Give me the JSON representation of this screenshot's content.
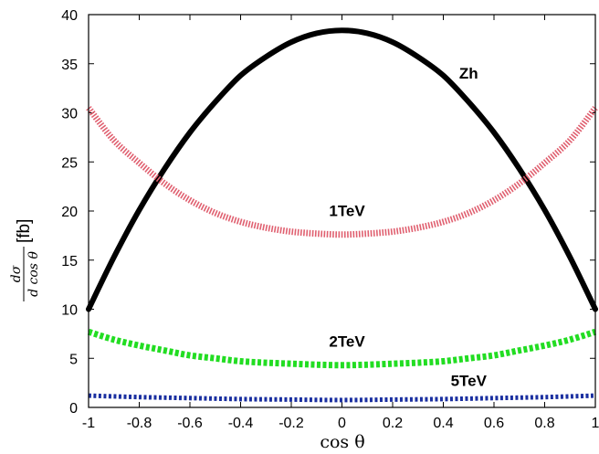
{
  "chart_data": {
    "type": "line",
    "xlabel": "cos θ",
    "ylabel": {
      "numerator": "dσ",
      "denominator": "d cos θ",
      "unit": "[fb]"
    },
    "xlim": [
      -1,
      1
    ],
    "ylim": [
      0,
      40
    ],
    "xticks": [
      "-1",
      "-0.8",
      "-0.6",
      "-0.4",
      "-0.2",
      "0",
      "0.2",
      "0.4",
      "0.6",
      "0.8",
      "1"
    ],
    "xtick_values": [
      -1,
      -0.8,
      -0.6,
      -0.4,
      -0.2,
      0,
      0.2,
      0.4,
      0.6,
      0.8,
      1
    ],
    "yticks": [
      "0",
      "5",
      "10",
      "15",
      "20",
      "25",
      "30",
      "35",
      "40"
    ],
    "ytick_values": [
      0,
      5,
      10,
      15,
      20,
      25,
      30,
      35,
      40
    ],
    "grid": false,
    "legend": "none",
    "series": [
      {
        "name": "Zh",
        "color": "#000000",
        "style": "solid-thick",
        "label_at": [
          0.5,
          33.5
        ],
        "x": [
          -1,
          -0.9,
          -0.8,
          -0.7,
          -0.6,
          -0.5,
          -0.4,
          -0.3,
          -0.2,
          -0.1,
          0,
          0.1,
          0.2,
          0.3,
          0.4,
          0.5,
          0.6,
          0.7,
          0.8,
          0.9,
          1
        ],
        "y": [
          10.0,
          15.3,
          20.1,
          24.3,
          28.0,
          31.1,
          33.8,
          35.7,
          37.2,
          38.1,
          38.4,
          38.1,
          37.2,
          35.7,
          33.8,
          31.1,
          28.0,
          24.3,
          20.1,
          15.3,
          10.0
        ]
      },
      {
        "name": "1TeV",
        "color": "#e06070",
        "style": "hatched",
        "label_at": [
          0.02,
          19.5
        ],
        "x": [
          -1,
          -0.9,
          -0.8,
          -0.7,
          -0.6,
          -0.5,
          -0.4,
          -0.3,
          -0.2,
          -0.1,
          0,
          0.1,
          0.2,
          0.3,
          0.4,
          0.5,
          0.6,
          0.7,
          0.8,
          0.9,
          1
        ],
        "y": [
          30.5,
          27.2,
          24.9,
          22.8,
          21.1,
          19.8,
          18.9,
          18.3,
          17.9,
          17.7,
          17.6,
          17.7,
          17.9,
          18.3,
          18.9,
          19.8,
          21.1,
          22.8,
          24.9,
          27.2,
          30.5
        ]
      },
      {
        "name": "2TeV",
        "color": "#22dd22",
        "style": "dotted-thick",
        "label_at": [
          0.02,
          6.2
        ],
        "x": [
          -1,
          -0.9,
          -0.8,
          -0.7,
          -0.6,
          -0.5,
          -0.4,
          -0.3,
          -0.2,
          -0.1,
          0,
          0.1,
          0.2,
          0.3,
          0.4,
          0.5,
          0.6,
          0.7,
          0.8,
          0.9,
          1
        ],
        "y": [
          7.7,
          6.9,
          6.3,
          5.8,
          5.3,
          5.0,
          4.7,
          4.55,
          4.45,
          4.35,
          4.3,
          4.35,
          4.45,
          4.55,
          4.7,
          5.0,
          5.3,
          5.8,
          6.3,
          6.9,
          7.7
        ]
      },
      {
        "name": "5TeV",
        "color": "#1a2fa0",
        "style": "dotted",
        "label_at": [
          0.5,
          2.2
        ],
        "x": [
          -1,
          -0.8,
          -0.6,
          -0.4,
          -0.2,
          0,
          0.2,
          0.4,
          0.6,
          0.8,
          1
        ],
        "y": [
          1.2,
          1.05,
          0.95,
          0.85,
          0.8,
          0.75,
          0.8,
          0.85,
          0.95,
          1.05,
          1.2
        ]
      }
    ]
  }
}
